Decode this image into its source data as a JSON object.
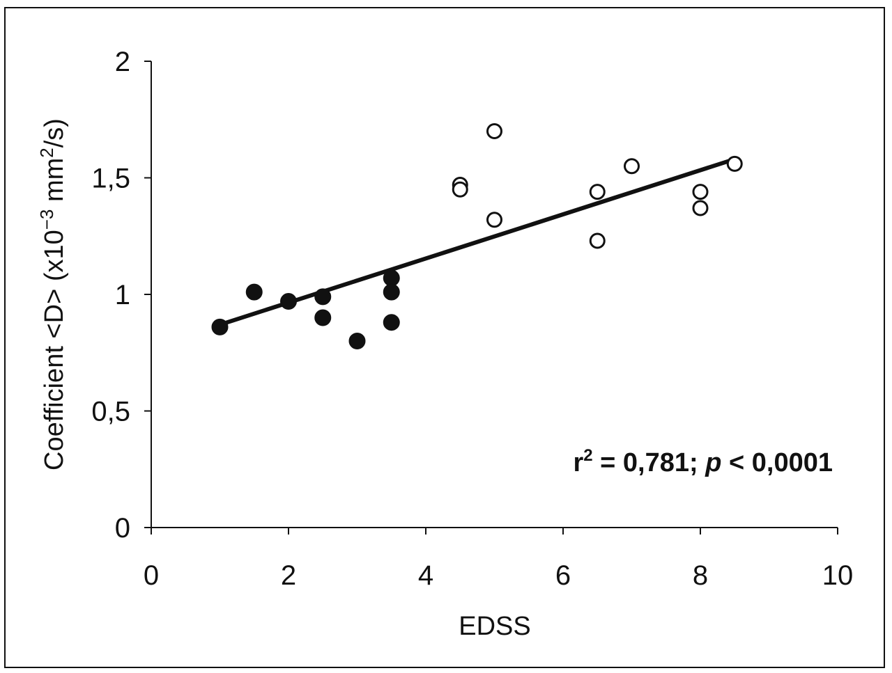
{
  "chart_data": {
    "type": "scatter",
    "xlabel": "EDSS",
    "ylabel": {
      "prefix": "Coefficient <D> (x10",
      "exp1": "−3",
      "middle": " mm",
      "exp2": "2",
      "suffix": "/s)"
    },
    "xlim": [
      0,
      10
    ],
    "ylim": [
      0,
      2
    ],
    "x_ticks": [
      0,
      2,
      4,
      6,
      8,
      10
    ],
    "x_tick_labels": [
      "0",
      "2",
      "4",
      "6",
      "8",
      "10"
    ],
    "y_ticks": [
      0,
      0.5,
      1,
      1.5,
      2
    ],
    "y_tick_labels": [
      "0",
      "0,5",
      "1",
      "1,5",
      "2"
    ],
    "grid": false,
    "series": [
      {
        "marker": "filled-circle",
        "color": "#111111",
        "points": [
          {
            "x": 1,
            "y": 0.86
          },
          {
            "x": 1.5,
            "y": 1.01
          },
          {
            "x": 2,
            "y": 0.97
          },
          {
            "x": 2.5,
            "y": 0.99
          },
          {
            "x": 2.5,
            "y": 0.9
          },
          {
            "x": 3,
            "y": 0.8
          },
          {
            "x": 3.5,
            "y": 1.07
          },
          {
            "x": 3.5,
            "y": 1.01
          },
          {
            "x": 3.5,
            "y": 0.88
          }
        ]
      },
      {
        "marker": "open-circle",
        "color": "#111111",
        "points": [
          {
            "x": 4.5,
            "y": 1.47
          },
          {
            "x": 4.5,
            "y": 1.45
          },
          {
            "x": 5,
            "y": 1.7
          },
          {
            "x": 5,
            "y": 1.32
          },
          {
            "x": 6.5,
            "y": 1.44
          },
          {
            "x": 6.5,
            "y": 1.23
          },
          {
            "x": 7,
            "y": 1.55
          },
          {
            "x": 8,
            "y": 1.44
          },
          {
            "x": 8,
            "y": 1.37
          },
          {
            "x": 8.5,
            "y": 1.56
          }
        ]
      }
    ],
    "trendline": {
      "x1": 1,
      "y1": 0.87,
      "x2": 8.5,
      "y2": 1.58
    },
    "annotation": {
      "r_label": "r",
      "r_exp": "2",
      "stat_text": " = 0,781; ",
      "p_label": "p",
      "p_text": " < 0,0001"
    }
  }
}
